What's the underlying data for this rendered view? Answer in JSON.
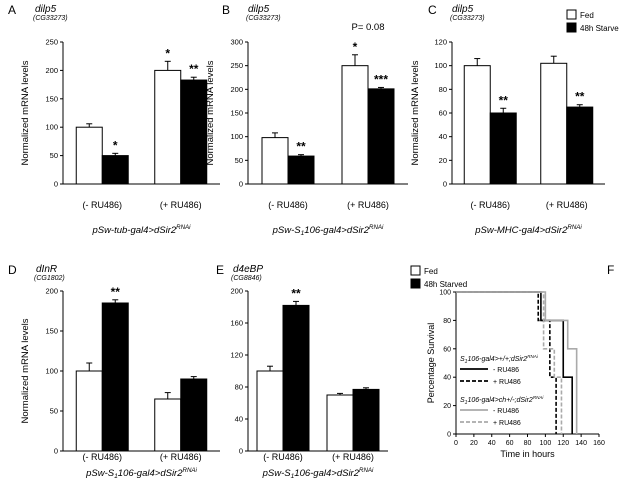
{
  "chart_data": [
    {
      "type": "bar",
      "panel": "A",
      "gene": "dilp5",
      "cg": "(CG33273)",
      "ylabel": "Normalized mRNA levels",
      "ylim": [
        0,
        250
      ],
      "yticks": [
        "0",
        "50",
        "100",
        "150",
        "200",
        "250"
      ],
      "categories": [
        "(- RU486)",
        "(+ RU486)"
      ],
      "series": [
        {
          "name": "Fed",
          "values": [
            100,
            200
          ],
          "errors": [
            6,
            16
          ]
        },
        {
          "name": "48h Starved",
          "values": [
            50,
            183
          ],
          "errors": [
            4,
            5
          ]
        }
      ],
      "sig": [
        [
          "",
          "*"
        ],
        [
          "*",
          "**"
        ]
      ],
      "genotype": {
        "pre": "pSw-tub-gal4>dSir2",
        "sup": "RNAi"
      }
    },
    {
      "type": "bar",
      "panel": "B",
      "gene": "dilp5",
      "cg": "(CG33273)",
      "ylabel": "Normalized mRNA levels",
      "ylim": [
        0,
        300
      ],
      "yticks": [
        "0",
        "50",
        "100",
        "150",
        "200",
        "250",
        "300"
      ],
      "categories": [
        "(- RU486)",
        "(+ RU486)"
      ],
      "series": [
        {
          "name": "Fed",
          "values": [
            98,
            250
          ],
          "errors": [
            10,
            23
          ]
        },
        {
          "name": "48h Starved",
          "values": [
            59,
            201
          ],
          "errors": [
            3,
            3
          ]
        }
      ],
      "sig": [
        [
          "",
          "*"
        ],
        [
          "**",
          "***"
        ]
      ],
      "pvalue": "P= 0.08",
      "genotype": {
        "pre": "pSw-S",
        "sub": "1",
        "mid": "106-gal4>dSir2",
        "sup": "RNAi"
      }
    },
    {
      "type": "bar",
      "panel": "C",
      "gene": "dilp5",
      "cg": "(CG33273)",
      "ylabel": "Normalized mRNA levels",
      "ylim": [
        0,
        120
      ],
      "yticks": [
        "0",
        "20",
        "40",
        "60",
        "80",
        "100",
        "120"
      ],
      "categories": [
        "(- RU486)",
        "(+ RU486)"
      ],
      "series": [
        {
          "name": "Fed",
          "values": [
            100,
            102
          ],
          "errors": [
            6,
            6
          ]
        },
        {
          "name": "48h Starved",
          "values": [
            60,
            65
          ],
          "errors": [
            4,
            2
          ]
        }
      ],
      "sig": [
        [
          "",
          ""
        ],
        [
          "**",
          "**"
        ]
      ],
      "legend": [
        "Fed",
        "48h Starved"
      ],
      "genotype": {
        "pre": "pSw-MHC-gal4>dSir2",
        "sup": "RNAi"
      }
    },
    {
      "type": "bar",
      "panel": "D",
      "gene": "dInR",
      "cg": "(CG1802)",
      "ylabel": "Normalized mRNA levels",
      "ylim": [
        0,
        200
      ],
      "yticks": [
        "0",
        "50",
        "100",
        "150",
        "200"
      ],
      "categories": [
        "(- RU486)",
        "(+ RU486)"
      ],
      "series": [
        {
          "name": "Fed",
          "values": [
            100,
            65
          ],
          "errors": [
            10,
            8
          ]
        },
        {
          "name": "48h Starved",
          "values": [
            185,
            90
          ],
          "errors": [
            4,
            3
          ]
        }
      ],
      "sig": [
        [
          "",
          ""
        ],
        [
          "**",
          ""
        ]
      ],
      "genotype": {
        "pre": "pSw-S",
        "sub": "1",
        "mid": "106-gal4>dSir2",
        "sup": "RNAi"
      }
    },
    {
      "type": "bar",
      "panel": "E",
      "gene": "d4eBP",
      "cg": "(CG8846)",
      "ylabel": "",
      "ylim": [
        0,
        200
      ],
      "yticks": [
        "0",
        "40",
        "80",
        "120",
        "160",
        "200"
      ],
      "categories": [
        "(- RU486)",
        "(+ RU486)"
      ],
      "series": [
        {
          "name": "Fed",
          "values": [
            100,
            70
          ],
          "errors": [
            6,
            2
          ]
        },
        {
          "name": "48h Starved",
          "values": [
            182,
            77
          ],
          "errors": [
            5,
            2
          ]
        }
      ],
      "sig": [
        [
          "",
          ""
        ],
        [
          "**",
          ""
        ]
      ],
      "legend": [
        "Fed",
        "48h Starved"
      ],
      "genotype": {
        "pre": "pSw-S",
        "sub": "1",
        "mid": "106-gal4>dSir2",
        "sup": "RNAi"
      }
    },
    {
      "type": "line",
      "panel": "F",
      "ylabel": "Percentage Survival",
      "xlabel": "Time in hours",
      "xlim": [
        0,
        160
      ],
      "ylim": [
        0,
        100
      ],
      "xticks": [
        "0",
        "20",
        "40",
        "60",
        "80",
        "100",
        "120",
        "140",
        "160"
      ],
      "yticks": [
        "0",
        "20",
        "40",
        "60",
        "80",
        "100"
      ],
      "legend_groups": [
        {
          "title_pre": "S",
          "title_sub": "1",
          "title_mid": "106-gal4>+/+;dSir2",
          "title_sup": "RNAi",
          "entries": [
            "- RU486",
            "+ RU486"
          ]
        },
        {
          "title_pre": "S",
          "title_sub": "1",
          "title_mid": "106-gal4>ch+/-;dSir2",
          "title_sup": "RNAi",
          "entries": [
            "- RU486",
            "+ RU486"
          ]
        }
      ],
      "series": [
        {
          "name": "S1106-gal4>+/+;dSir2RNAi - RU486",
          "color": "#000000",
          "dash": false,
          "x": [
            0,
            95,
            95,
            110,
            110,
            120,
            120,
            130,
            130
          ],
          "y": [
            100,
            100,
            80,
            80,
            80,
            80,
            40,
            40,
            0
          ]
        },
        {
          "name": "S1106-gal4>+/+;dSir2RNAi + RU486",
          "color": "#000000",
          "dash": true,
          "x": [
            0,
            92,
            92,
            105,
            105,
            112,
            112
          ],
          "y": [
            100,
            100,
            80,
            80,
            40,
            40,
            0
          ]
        },
        {
          "name": "S1106-gal4>ch+/-;dSir2RNAi - RU486",
          "color": "#aaaaaa",
          "dash": false,
          "x": [
            0,
            100,
            100,
            125,
            125,
            135,
            135
          ],
          "y": [
            100,
            100,
            80,
            80,
            60,
            60,
            0
          ]
        },
        {
          "name": "S1106-gal4>ch+/-;dSir2RNAi + RU486",
          "color": "#aaaaaa",
          "dash": true,
          "x": [
            0,
            98,
            98,
            110,
            110,
            118,
            118
          ],
          "y": [
            100,
            100,
            60,
            60,
            40,
            40,
            0
          ]
        }
      ]
    }
  ],
  "colors": {
    "fed": "#ffffff",
    "starved": "#000000",
    "axis": "#000000",
    "grey_line": "#aaaaaa"
  }
}
